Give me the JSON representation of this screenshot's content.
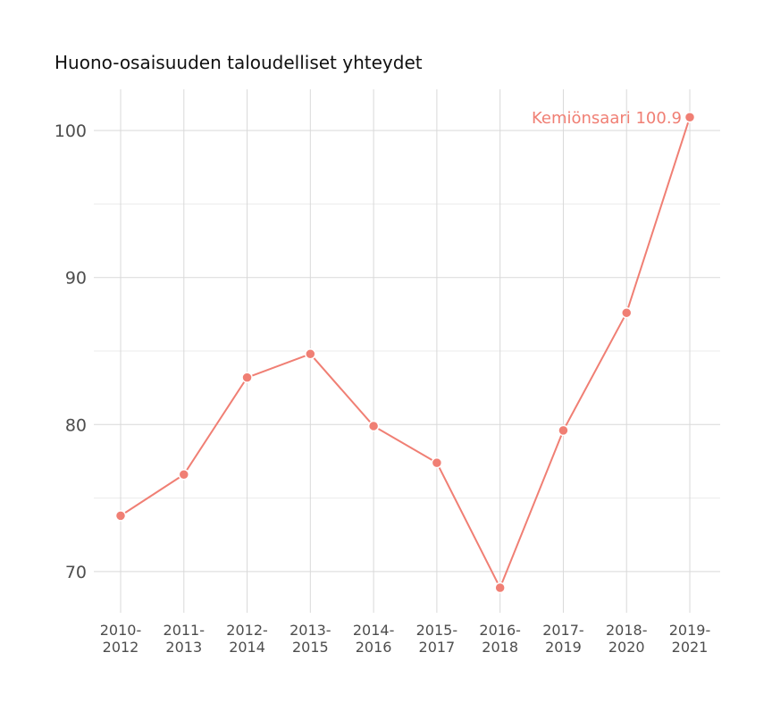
{
  "chart_data": {
    "type": "line",
    "title": "Huono-osaisuuden taloudelliset yhteydet",
    "xlabel": "",
    "ylabel": "",
    "categories": [
      [
        "2010-",
        "2012"
      ],
      [
        "2011-",
        "2013"
      ],
      [
        "2012-",
        "2014"
      ],
      [
        "2013-",
        "2015"
      ],
      [
        "2014-",
        "2016"
      ],
      [
        "2015-",
        "2017"
      ],
      [
        "2016-",
        "2018"
      ],
      [
        "2017-",
        "2019"
      ],
      [
        "2018-",
        "2020"
      ],
      [
        "2019-",
        "2021"
      ]
    ],
    "series": [
      {
        "name": "Kemiönsaari",
        "color": "#f07f74",
        "values": [
          73.8,
          76.6,
          83.2,
          84.8,
          79.9,
          77.4,
          68.9,
          79.6,
          87.6,
          100.9
        ],
        "end_label": "Kemiönsaari 100.9"
      }
    ],
    "ylim": [
      67.2,
      102.8
    ],
    "yticks": [
      70,
      80,
      90,
      100
    ],
    "y_minor_ticks": [
      75,
      85,
      95
    ],
    "grid": true,
    "legend": "none"
  }
}
